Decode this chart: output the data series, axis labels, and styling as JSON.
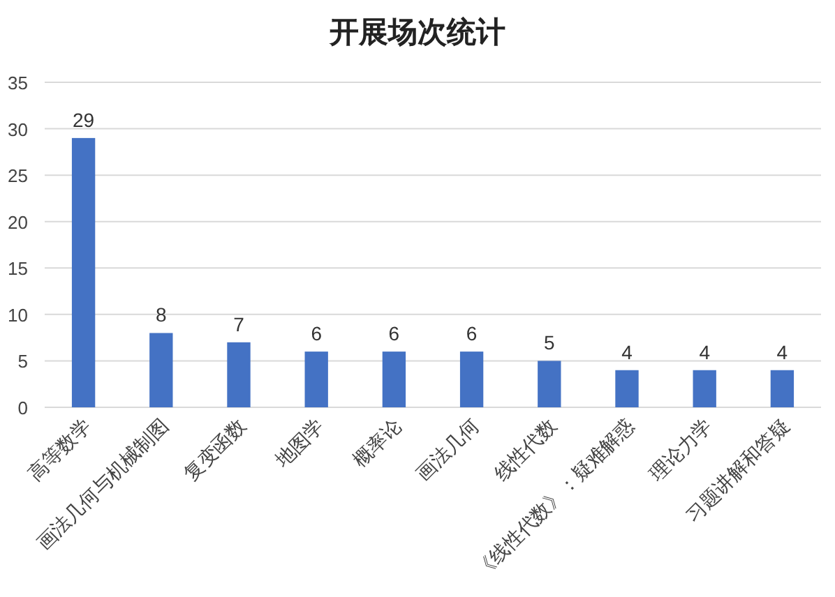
{
  "chart_data": {
    "type": "bar",
    "title": "开展场次统计",
    "categories": [
      "高等数学",
      "画法几何与机械制图",
      "复变函数",
      "地图学",
      "概率论",
      "画法几何",
      "线性代数",
      "《线性代数》：疑难解惑",
      "理论力学",
      "习题讲解和答疑"
    ],
    "values": [
      29,
      8,
      7,
      6,
      6,
      6,
      5,
      4,
      4,
      4
    ],
    "color": "#4472c4",
    "ylim": [
      0,
      35
    ],
    "yticks": [
      0,
      5,
      10,
      15,
      20,
      25,
      30,
      35
    ],
    "grid": "y",
    "data_labels": true
  }
}
